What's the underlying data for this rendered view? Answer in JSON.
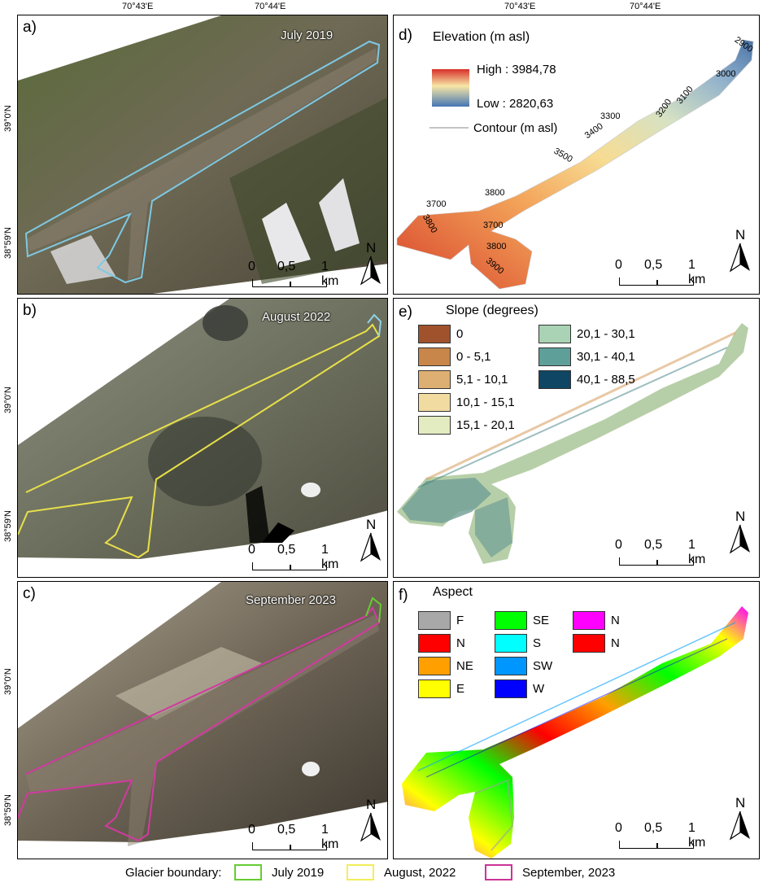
{
  "top_axis": {
    "left_ticks": [
      "70°43'E",
      "70°44'E"
    ],
    "right_ticks": [
      "70°43'E",
      "70°44'E"
    ]
  },
  "left_axis": {
    "a": [
      "39°0'N",
      "38°59'N"
    ],
    "b": [
      "39°0'N",
      "38°59'N"
    ],
    "c": [
      "39°0'N",
      "38°59'N"
    ]
  },
  "panels": {
    "a": {
      "label": "a)",
      "title": "July 2019",
      "outline_color": "#7ec8e3"
    },
    "b": {
      "label": "b)",
      "title": "August 2022",
      "outline_color": "#e8e04a"
    },
    "c": {
      "label": "c)",
      "title": "September 2023",
      "outline_color": "#d23aa0"
    },
    "d": {
      "label": "d)",
      "title": "Elevation (m asl)",
      "high": "High : 3984,78",
      "low": "Low : 2820,63",
      "contour": "Contour (m asl)",
      "contour_labels": [
        "2900",
        "3000",
        "3100",
        "3200",
        "3300",
        "3400",
        "3500",
        "3800",
        "3700",
        "3800",
        "3700",
        "3800",
        "3900"
      ]
    },
    "e": {
      "label": "e)",
      "title": "Slope (degrees)",
      "classes": [
        {
          "label": "0",
          "color": "#a0522d"
        },
        {
          "label": "0 - 5,1",
          "color": "#c8864a"
        },
        {
          "label": "5,1 - 10,1",
          "color": "#deaf72"
        },
        {
          "label": "10,1 - 15,1",
          "color": "#f1dba0"
        },
        {
          "label": "15,1 - 20,1",
          "color": "#e2ecc0"
        },
        {
          "label": "20,1 - 30,1",
          "color": "#a9d3b4"
        },
        {
          "label": "30,1 - 40,1",
          "color": "#5f9f99"
        },
        {
          "label": "40,1 - 88,5",
          "color": "#0f4663"
        }
      ]
    },
    "f": {
      "label": "f)",
      "title": "Aspect",
      "classes": [
        {
          "label": "F",
          "color": "#a8a8a8"
        },
        {
          "label": "N",
          "color": "#ff0000"
        },
        {
          "label": "NE",
          "color": "#ff9f00"
        },
        {
          "label": "E",
          "color": "#ffff00"
        },
        {
          "label": "SE",
          "color": "#00ff00"
        },
        {
          "label": "S",
          "color": "#00ffff"
        },
        {
          "label": "SW",
          "color": "#0096ff"
        },
        {
          "label": "W",
          "color": "#0000ff"
        },
        {
          "label": "N",
          "color": "#ff00ff"
        },
        {
          "label": "N",
          "color": "#ff0000"
        }
      ]
    }
  },
  "scale": {
    "t0": "0",
    "t1": "0,5",
    "t2": "1 km"
  },
  "north": "N",
  "bottom_legend": {
    "label": "Glacier boundary:",
    "items": [
      {
        "label": "July 2019",
        "color": "#66cc33"
      },
      {
        "label": "August, 2022",
        "color": "#f2ee5a"
      },
      {
        "label": "September, 2023",
        "color": "#cc3399"
      }
    ]
  }
}
